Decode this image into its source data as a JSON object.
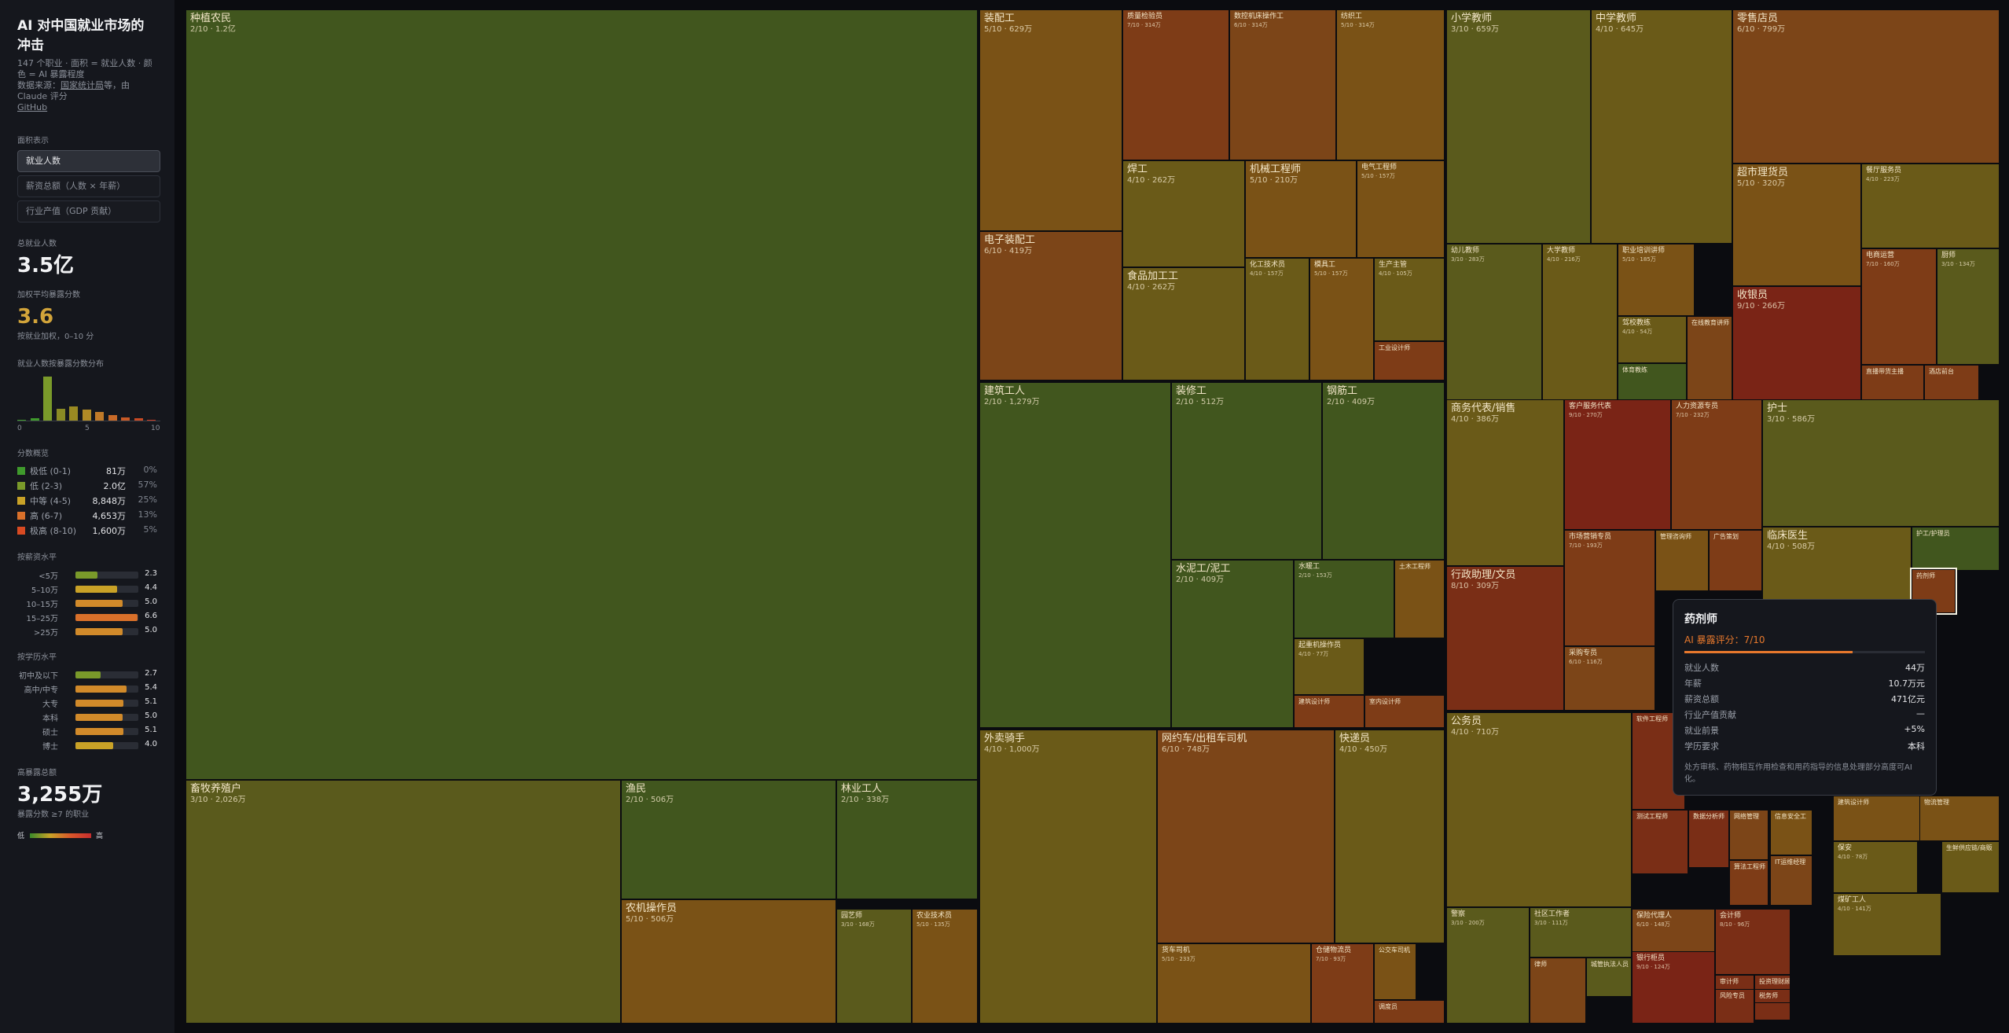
{
  "sidebar": {
    "title": "AI 对中国就业市场的冲击",
    "subtitle": "147 个职业 · 面积 = 就业人数 · 颜色 = AI 暴露程度",
    "source_prefix": "数据来源：",
    "source_link": "国家统计局",
    "source_suffix": "等，由 Claude 评分",
    "github": "GitHub",
    "area_label": "面积表示",
    "modes": [
      "就业人数",
      "薪资总额（人数 × 年薪）",
      "行业产值（GDP 贡献）"
    ],
    "total_label": "总就业人数",
    "total_value": "3.5亿",
    "avg_label": "加权平均暴露分数",
    "avg_value": "3.6",
    "avg_note": "按就业加权，0–10 分",
    "hist_label": "就业人数按暴露分数分布",
    "hist_values": [
      0.4,
      1.2,
      20,
      5.5,
      6.4,
      4.9,
      3.9,
      2.5,
      1.6,
      1.1,
      0.5
    ],
    "hist_ticks": [
      "0",
      "5",
      "10"
    ],
    "tier_label": "分数概览",
    "tiers": [
      {
        "name": "极低 (0-1)",
        "value": "81万",
        "pct": "0%",
        "color": "#3f9a2c"
      },
      {
        "name": "低 (2-3)",
        "value": "2.0亿",
        "pct": "57%",
        "color": "#7a9a2a"
      },
      {
        "name": "中等 (4-5)",
        "value": "8,848万",
        "pct": "25%",
        "color": "#c9a227"
      },
      {
        "name": "高 (6-7)",
        "value": "4,653万",
        "pct": "13%",
        "color": "#d9702a"
      },
      {
        "name": "极高 (8-10)",
        "value": "1,600万",
        "pct": "5%",
        "color": "#d84a22"
      }
    ],
    "salary_label": "按薪资水平",
    "salary_rows": [
      {
        "name": "<5万",
        "value": "2.3",
        "color": "#7a9a2a"
      },
      {
        "name": "5–10万",
        "value": "4.4",
        "color": "#c9a227"
      },
      {
        "name": "10–15万",
        "value": "5.0",
        "color": "#d18a2a"
      },
      {
        "name": "15–25万",
        "value": "6.6",
        "color": "#d9702a"
      },
      {
        "name": ">25万",
        "value": "5.0",
        "color": "#d18a2a"
      }
    ],
    "edu_label": "按学历水平",
    "edu_rows": [
      {
        "name": "初中及以下",
        "value": "2.7",
        "color": "#7a9a2a"
      },
      {
        "name": "高中/中专",
        "value": "5.4",
        "color": "#d18a2a"
      },
      {
        "name": "大专",
        "value": "5.1",
        "color": "#d18a2a"
      },
      {
        "name": "本科",
        "value": "5.0",
        "color": "#d18a2a"
      },
      {
        "name": "硕士",
        "value": "5.1",
        "color": "#d18a2a"
      },
      {
        "name": "博士",
        "value": "4.0",
        "color": "#c9a227"
      }
    ],
    "high_label": "高暴露总额",
    "high_value": "3,255万",
    "high_note": "暴露分数 ≥7 的职业",
    "legend_low": "低",
    "legend_high": "高"
  },
  "colors": {
    "0": "#3f6a1f",
    "1": "#3f6a1f",
    "2": "#41561e",
    "3": "#5a5a1c",
    "4": "#6a5a18",
    "5": "#7a5216",
    "6": "#7c4518",
    "7": "#7e3c17",
    "8": "#7a2e16",
    "9": "#7a2416",
    "10": "#7a1f18"
  },
  "chart_data": {
    "type": "treemap",
    "sizing": "就业人数",
    "color_scale": "AI 暴露评分 0–10",
    "cells": [
      {
        "name": "种植农民",
        "score": 2,
        "label": "2/10 · 1.2亿"
      },
      {
        "name": "畜牧养殖户",
        "score": 3,
        "label": "3/10 · 2,026万"
      },
      {
        "name": "渔民",
        "score": 2,
        "label": "2/10 · 506万"
      },
      {
        "name": "林业工人",
        "score": 2,
        "label": "2/10 · 338万"
      },
      {
        "name": "农机操作员",
        "score": 5,
        "label": "5/10 · 506万"
      },
      {
        "name": "园艺师",
        "score": 3,
        "label": "3/10 · 168万"
      },
      {
        "name": "农业技术员",
        "score": 5,
        "label": "5/10 · 135万"
      },
      {
        "name": "装配工",
        "score": 5,
        "label": "5/10 · 629万"
      },
      {
        "name": "质量检验员",
        "score": 7,
        "label": "7/10 · 314万"
      },
      {
        "name": "数控机床操作工",
        "score": 6,
        "label": "6/10 · 314万"
      },
      {
        "name": "纺织工",
        "score": 5,
        "label": "5/10 · 314万"
      },
      {
        "name": "电子装配工",
        "score": 6,
        "label": "6/10 · 419万"
      },
      {
        "name": "焊工",
        "score": 4,
        "label": "4/10 · 262万"
      },
      {
        "name": "机械工程师",
        "score": 5,
        "label": "5/10 · 210万"
      },
      {
        "name": "电气工程师",
        "score": 5,
        "label": "5/10 · 157万"
      },
      {
        "name": "食品加工工",
        "score": 4,
        "label": "4/10 · 262万"
      },
      {
        "name": "化工技术员",
        "score": 4,
        "label": "4/10 · 157万"
      },
      {
        "name": "模具工",
        "score": 5,
        "label": "5/10 · 157万"
      },
      {
        "name": "生产主管",
        "score": 4,
        "label": "4/10 · 105万"
      },
      {
        "name": "工业设计师",
        "score": 7,
        "label": "7/10 · 52万"
      },
      {
        "name": "建筑工人",
        "score": 2,
        "label": "2/10 · 1,279万"
      },
      {
        "name": "装修工",
        "score": 2,
        "label": "2/10 · 512万"
      },
      {
        "name": "钢筋工",
        "score": 2,
        "label": "2/10 · 409万"
      },
      {
        "name": "水泥工/泥工",
        "score": 2,
        "label": "2/10 · 409万"
      },
      {
        "name": "水暖工",
        "score": 2,
        "label": "2/10 · 153万"
      },
      {
        "name": "土木工程师",
        "score": 5,
        "label": "5/10 · 77万"
      },
      {
        "name": "起重机操作员",
        "score": 4,
        "label": "4/10 · 77万"
      },
      {
        "name": "建筑设计师",
        "score": 7,
        "label": "7/10 · 51万"
      },
      {
        "name": "室内设计师",
        "score": 7,
        "label": ""
      },
      {
        "name": "外卖骑手",
        "score": 4,
        "label": "4/10 · 1,000万"
      },
      {
        "name": "网约车/出租车司机",
        "score": 6,
        "label": "6/10 · 748万"
      },
      {
        "name": "快递员",
        "score": 4,
        "label": "4/10 · 450万"
      },
      {
        "name": "货车司机",
        "score": 5,
        "label": "5/10 · 233万"
      },
      {
        "name": "仓储物流员",
        "score": 7,
        "label": "7/10 · 93万"
      },
      {
        "name": "公交车司机",
        "score": 5,
        "label": ""
      },
      {
        "name": "调度员",
        "score": 7,
        "label": ""
      },
      {
        "name": "小学教师",
        "score": 3,
        "label": "3/10 · 659万"
      },
      {
        "name": "中学教师",
        "score": 4,
        "label": "4/10 · 645万"
      },
      {
        "name": "幼儿教师",
        "score": 3,
        "label": "3/10 · 283万"
      },
      {
        "name": "大学教师",
        "score": 4,
        "label": "4/10 · 216万"
      },
      {
        "name": "职业培训讲师",
        "score": 5,
        "label": "5/10 · 185万"
      },
      {
        "name": "驾校教练",
        "score": 4,
        "label": "4/10 · 54万"
      },
      {
        "name": "体育教练",
        "score": 2,
        "label": "2/10 · 54万"
      },
      {
        "name": "在线教育讲师",
        "score": 6,
        "label": ""
      },
      {
        "name": "零售店员",
        "score": 6,
        "label": "6/10 · 799万"
      },
      {
        "name": "超市理货员",
        "score": 5,
        "label": "5/10 · 320万"
      },
      {
        "name": "餐厅服务员",
        "score": 4,
        "label": "4/10 · 223万"
      },
      {
        "name": "收银员",
        "score": 9,
        "label": "9/10 · 266万"
      },
      {
        "name": "电商运营",
        "score": 7,
        "label": "7/10 · 160万"
      },
      {
        "name": "厨师",
        "score": 3,
        "label": "3/10 · 134万"
      },
      {
        "name": "直播带货主播",
        "score": 7,
        "label": "7/10 · 53万"
      },
      {
        "name": "酒店前台",
        "score": 7,
        "label": "7/10 · 45万"
      },
      {
        "name": "商务代表/销售",
        "score": 4,
        "label": "4/10 · 386万"
      },
      {
        "name": "客户服务代表",
        "score": 9,
        "label": "9/10 · 270万"
      },
      {
        "name": "人力资源专员",
        "score": 7,
        "label": "7/10 · 232万"
      },
      {
        "name": "行政助理/文员",
        "score": 8,
        "label": "8/10 · 309万"
      },
      {
        "name": "市场营销专员",
        "score": 7,
        "label": "7/10 · 193万"
      },
      {
        "name": "管理咨询师",
        "score": 5,
        "label": "5/10 · 77万"
      },
      {
        "name": "广告策划",
        "score": 7,
        "label": "7/10 · 77万"
      },
      {
        "name": "采购专员",
        "score": 6,
        "label": "6/10 · 116万"
      },
      {
        "name": "护士",
        "score": 3,
        "label": "3/10 · 586万"
      },
      {
        "name": "临床医生",
        "score": 4,
        "label": "4/10 · 508万"
      },
      {
        "name": "护工/护理员",
        "score": 2,
        "label": "2/10 · 73万"
      },
      {
        "name": "药剂师",
        "score": 7,
        "label": "7/10 · 44万"
      },
      {
        "name": "公务员",
        "score": 4,
        "label": "4/10 · 710万"
      },
      {
        "name": "警察",
        "score": 3,
        "label": "3/10 · 200万"
      },
      {
        "name": "社区工作者",
        "score": 3,
        "label": "3/10 · 111万"
      },
      {
        "name": "律师",
        "score": 6,
        "label": "6/10 · 63万"
      },
      {
        "name": "城管执法人员",
        "score": 3,
        "label": ""
      },
      {
        "name": "软件工程师",
        "score": 8,
        "label": "8/10 · 111万"
      },
      {
        "name": "测试工程师",
        "score": 8,
        "label": "8/10 · 60万"
      },
      {
        "name": "数据分析师",
        "score": 8,
        "label": ""
      },
      {
        "name": "网络管理",
        "score": 6,
        "label": ""
      },
      {
        "name": "信息安全工",
        "score": 5,
        "label": ""
      },
      {
        "name": "算法工程师",
        "score": 7,
        "label": ""
      },
      {
        "name": "IT运维经理",
        "score": 6,
        "label": ""
      },
      {
        "name": "保险代理人",
        "score": 6,
        "label": "6/10 · 148万"
      },
      {
        "name": "会计师",
        "score": 8,
        "label": "8/10 · 96万"
      },
      {
        "name": "银行柜员",
        "score": 9,
        "label": "9/10 · 124万"
      },
      {
        "name": "审计师",
        "score": 8,
        "label": ""
      },
      {
        "name": "投资理财顾问",
        "score": 8,
        "label": ""
      },
      {
        "name": "税务师",
        "score": 8,
        "label": ""
      },
      {
        "name": "风险专员",
        "score": 8,
        "label": ""
      },
      {
        "name": "煤矿工人",
        "score": 4,
        "label": "4/10 · 141万"
      },
      {
        "name": "保安",
        "score": 4,
        "label": "4/10 · 78万"
      },
      {
        "name": "建筑设计师",
        "score": 5,
        "label": "5/10 · 50万"
      },
      {
        "name": "物流管理",
        "score": 5,
        "label": "5/10 · 115万"
      },
      {
        "name": "生鲜供应链/商贩",
        "score": 4,
        "label": ""
      }
    ]
  },
  "tooltip": {
    "title": "药剂师",
    "score_text": "AI 暴露评分：7/10",
    "score": 7,
    "rows": [
      {
        "k": "就业人数",
        "v": "44万"
      },
      {
        "k": "年薪",
        "v": "10.7万元"
      },
      {
        "k": "薪资总额",
        "v": "471亿元"
      },
      {
        "k": "行业产值贡献",
        "v": "—"
      },
      {
        "k": "就业前景",
        "v": "+5%"
      },
      {
        "k": "学历要求",
        "v": "本科"
      }
    ],
    "desc": "处方审核、药物相互作用检查和用药指导的信息处理部分高度可AI化。"
  }
}
